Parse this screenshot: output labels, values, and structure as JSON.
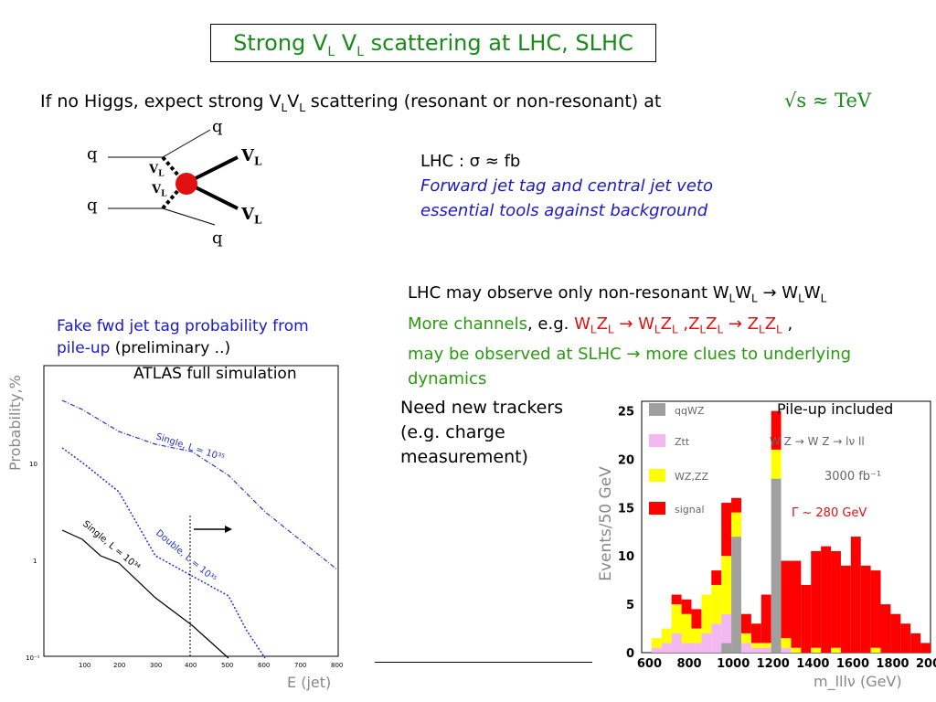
{
  "title": {
    "main": "Strong V",
    "sub1": "L",
    "mid": " V",
    "sub2": "L",
    "tail": "  scattering at  LHC, SLHC"
  },
  "intro": {
    "p1": "If no Higgs,  expect  strong V",
    "s1": "L",
    "p2": "V",
    "s2": "L",
    "p3": " scattering (resonant or  non-resonant) at",
    "formula": "√s ≈ TeV"
  },
  "diagram": {
    "q_top": "q",
    "q_left_top": "q",
    "q_left_bottom": "q",
    "q_bottom": "q",
    "vl_top": "V",
    "vl_bottom": "V",
    "vl_sub": "L",
    "vl_in_top": "V",
    "vl_in_bottom": "V"
  },
  "lhc": {
    "line1": "LHC : σ ≈  fb",
    "line2": "Forward jet tag  and central jet  veto",
    "line3": "essential tools  against  background"
  },
  "nonres": {
    "l1a": "LHC may observe only non-resonant W",
    "l1s1": "L",
    "l1b": "W",
    "l1s2": "L",
    "l1c": " → W",
    "l1s3": "L",
    "l1d": "W",
    "l1s4": "L",
    "l2a": "More channels",
    "l2b": ", e.g. ",
    "l2c": "W",
    "l2s1": "L",
    "l2d": "Z",
    "l2s2": "L",
    "l2e": " → W",
    "l2s3": "L",
    "l2f": "Z",
    "l2s4": "L",
    "l2g": " ,Z",
    "l2s5": "L",
    "l2h": "Z",
    "l2s6": "L",
    "l2i": " → Z",
    "l2s7": "L",
    "l2j": "Z",
    "l2s8": "L",
    "l2k": " ,",
    "l3": "may be observed at SLHC → more clues to underlying",
    "l4": "dynamics"
  },
  "fake": {
    "l1": "Fake fwd jet tag probability from",
    "l2a": "pile-up",
    "l2b": " (preliminary ..)"
  },
  "trackers": {
    "l1": "Need new trackers",
    "l2": "(e.g. charge",
    "l3": "measurement)"
  },
  "left_plot": {
    "caption": "ATLAS full simulation",
    "ylabel": "Probability,%",
    "xlabel": "E (jet)",
    "yticks": [
      "10",
      "1",
      "10⁻¹"
    ],
    "xticks": [
      "100",
      "200",
      "300",
      "400",
      "500",
      "600",
      "700",
      "800"
    ],
    "curve_labels": [
      "Single, L = 10³⁵",
      "Double, L = 10³⁵",
      "Single, L = 10³⁴"
    ]
  },
  "chart_data": {
    "type": "bar",
    "title": "",
    "xlabel": "m_lllν (GeV)",
    "ylabel": "Events/50 GeV",
    "ylim": [
      0,
      26
    ],
    "xlim": [
      550,
      2000
    ],
    "xticks": [
      "600",
      "800",
      "1000",
      "1200",
      "1400",
      "1600",
      "1800",
      "2000"
    ],
    "yticks": [
      "0",
      "5",
      "10",
      "15",
      "20",
      "25"
    ],
    "legend": [
      "qqWZ",
      "Ztt",
      "WZ,ZZ",
      "signal"
    ],
    "annotations": [
      "Pile-up included",
      "W Z → W Z → lν ll",
      "3000 fb⁻¹",
      "Γ ~ 280 GeV"
    ],
    "colors": {
      "qqWZ": "#a0a0a0",
      "Ztt": "#f4b8f0",
      "WZ,ZZ": "#ffff00",
      "signal": "#ff0000"
    },
    "bins": [
      600,
      650,
      700,
      750,
      800,
      850,
      900,
      950,
      1000,
      1050,
      1100,
      1150,
      1200,
      1250,
      1300,
      1350,
      1400,
      1450,
      1500,
      1550,
      1600,
      1650,
      1700,
      1750,
      1800,
      1850,
      1900,
      1950
    ],
    "series": [
      {
        "name": "qqWZ",
        "values": [
          0,
          0,
          0,
          0,
          0,
          0,
          0,
          1,
          12,
          0,
          0,
          0,
          18,
          0,
          0,
          0,
          0,
          0,
          0,
          0,
          0,
          0,
          0,
          0,
          0,
          0,
          0,
          0
        ]
      },
      {
        "name": "Ztt",
        "values": [
          0.5,
          1,
          2,
          1,
          1,
          2,
          3,
          3,
          0,
          1,
          0.5,
          0.5,
          0,
          0.5,
          0,
          0,
          0,
          0,
          0,
          0,
          0,
          0,
          0,
          0,
          0,
          0,
          0,
          0
        ]
      },
      {
        "name": "WZ,ZZ",
        "values": [
          1,
          1.5,
          3,
          3,
          1.5,
          4,
          4,
          6,
          2.5,
          1,
          0.5,
          0.5,
          3,
          1,
          0.5,
          0,
          0.5,
          0,
          0.5,
          0,
          0,
          0,
          0.5,
          0,
          0,
          0,
          0,
          0
        ]
      },
      {
        "name": "signal",
        "values": [
          0,
          0,
          1,
          1.5,
          2,
          0,
          1.5,
          5.5,
          1.5,
          2,
          2,
          5,
          4,
          8,
          9,
          7,
          10,
          11,
          10,
          9,
          12,
          9,
          8,
          5,
          4,
          3,
          2,
          1
        ]
      }
    ]
  }
}
